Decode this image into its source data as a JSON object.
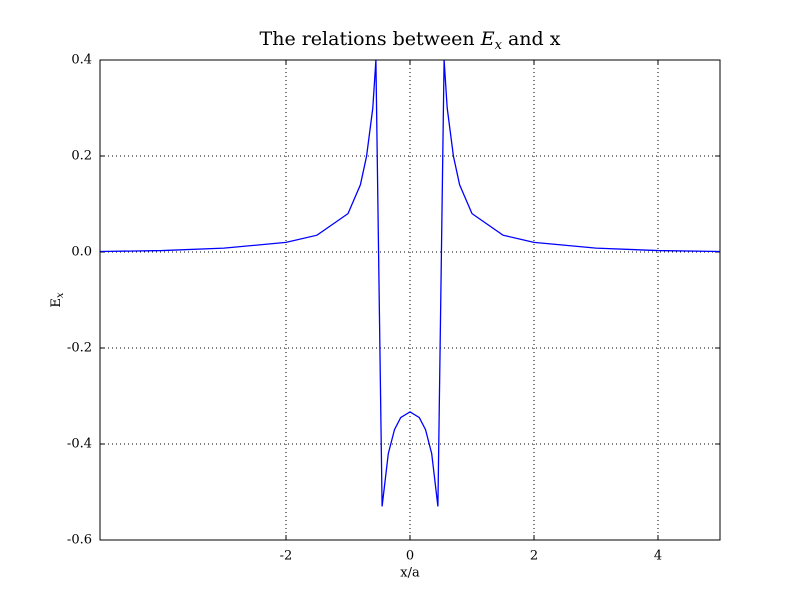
{
  "chart_data": {
    "type": "line",
    "title": {
      "text": "The relations between ",
      "symbol": "E",
      "subscript": "x",
      "tail": " and x"
    },
    "xlabel": "x/a",
    "ylabel": {
      "symbol": "E",
      "subscript": "x"
    },
    "x": [
      -5,
      -4,
      -3,
      -2,
      -1.5,
      -1,
      -0.8,
      -0.7,
      -0.6,
      -0.55,
      -0.45,
      -0.35,
      -0.25,
      -0.15,
      0,
      0.15,
      0.25,
      0.35,
      0.45,
      0.55,
      0.6,
      0.7,
      0.8,
      1,
      1.5,
      2,
      3,
      4,
      5
    ],
    "series": [
      {
        "name": "Ex",
        "color": "#0000ff",
        "values": [
          0.001,
          0.003,
          0.008,
          0.02,
          0.035,
          0.08,
          0.14,
          0.2,
          0.3,
          0.4,
          -0.53,
          -0.42,
          -0.37,
          -0.345,
          -0.333,
          -0.345,
          -0.37,
          -0.42,
          -0.53,
          0.4,
          0.3,
          0.2,
          0.14,
          0.08,
          0.035,
          0.02,
          0.008,
          0.003,
          0.001
        ]
      }
    ],
    "xlim": [
      -5,
      5
    ],
    "xticks": [
      -2,
      0,
      2,
      4
    ],
    "ylim": [
      -0.6,
      0.4
    ],
    "yticks": [
      -0.6,
      -0.4,
      -0.2,
      {
        "value": 0,
        "label": "0.0"
      },
      0.2,
      0.4
    ],
    "grid": true
  }
}
